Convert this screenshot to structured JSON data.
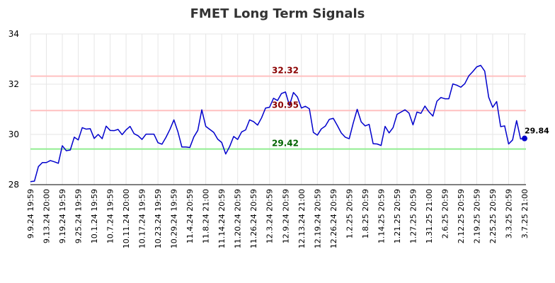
{
  "chart_data": {
    "type": "line",
    "title": "FMET Long Term Signals",
    "xlabel": "",
    "ylabel": "",
    "ylim": [
      28,
      34
    ],
    "yticks": [
      28,
      30,
      32,
      34
    ],
    "grid": true,
    "x_tick_labels": [
      "9.9.24 19:59",
      "9.13.24 20:00",
      "9.19.24 19:59",
      "9.25.24 19:59",
      "10.1.24 19:59",
      "10.7.24 19:59",
      "10.11.24 20:00",
      "10.17.24 19:59",
      "10.23.24 19:59",
      "10.29.24 19:59",
      "11.4.24 20:59",
      "11.8.24 21:00",
      "11.14.24 20:59",
      "11.20.24 20:59",
      "11.26.24 20:59",
      "12.3.24 20:59",
      "12.9.24 20:59",
      "12.13.24 21:00",
      "12.19.24 20:59",
      "12.26.24 20:59",
      "1.2.25 20:59",
      "1.8.25 20:59",
      "1.14.25 20:59",
      "1.21.25 20:59",
      "1.27.25 20:59",
      "1.31.25 21:00",
      "2.6.25 20:59",
      "2.12.25 20:59",
      "2.19.25 20:59",
      "2.25.25 20:59",
      "3.3.25 20:59",
      "3.7.25 21:00"
    ],
    "series": [
      {
        "color": "#0000cc",
        "values": [
          28.12,
          28.14,
          28.72,
          28.88,
          28.88,
          28.96,
          28.91,
          28.85,
          29.55,
          29.35,
          29.38,
          29.89,
          29.78,
          30.27,
          30.21,
          30.23,
          29.84,
          30.0,
          29.83,
          30.33,
          30.16,
          30.15,
          30.2,
          29.99,
          30.18,
          30.32,
          30.03,
          29.95,
          29.8,
          30.01,
          30.01,
          30.01,
          29.67,
          29.61,
          29.88,
          30.2,
          30.58,
          30.11,
          29.5,
          29.5,
          29.48,
          29.9,
          30.16,
          30.98,
          30.32,
          30.2,
          30.08,
          29.81,
          29.68,
          29.22,
          29.52,
          29.92,
          29.8,
          30.1,
          30.18,
          30.58,
          30.51,
          30.37,
          30.66,
          31.05,
          31.08,
          31.44,
          31.35,
          31.63,
          31.69,
          31.15,
          31.67,
          31.49,
          31.05,
          31.12,
          31.02,
          30.08,
          29.97,
          30.22,
          30.33,
          30.6,
          30.64,
          30.36,
          30.06,
          29.89,
          29.83,
          30.45,
          31.0,
          30.5,
          30.34,
          30.4,
          29.63,
          29.62,
          29.56,
          30.32,
          30.06,
          30.27,
          30.8,
          30.89,
          30.98,
          30.85,
          30.38,
          30.89,
          30.84,
          31.13,
          30.9,
          30.73,
          31.32,
          31.47,
          31.42,
          31.42,
          32.01,
          31.96,
          31.88,
          32.02,
          32.33,
          32.5,
          32.69,
          32.75,
          32.52,
          31.48,
          31.08,
          31.31,
          30.31,
          30.34,
          29.62,
          29.78,
          30.55,
          29.82,
          29.84
        ]
      }
    ],
    "reference_lines": [
      {
        "value": 32.32,
        "label": "32.32",
        "line_color": "#ffc0c0",
        "label_color": "#8b0000"
      },
      {
        "value": 30.95,
        "label": "30.95",
        "line_color": "#ffc0c0",
        "label_color": "#8b0000"
      },
      {
        "value": 29.42,
        "label": "29.42",
        "line_color": "#90ee90",
        "label_color": "#006400"
      }
    ],
    "last_point": {
      "value": 29.84,
      "label": "29.84",
      "marker_color": "#0000cc"
    }
  }
}
